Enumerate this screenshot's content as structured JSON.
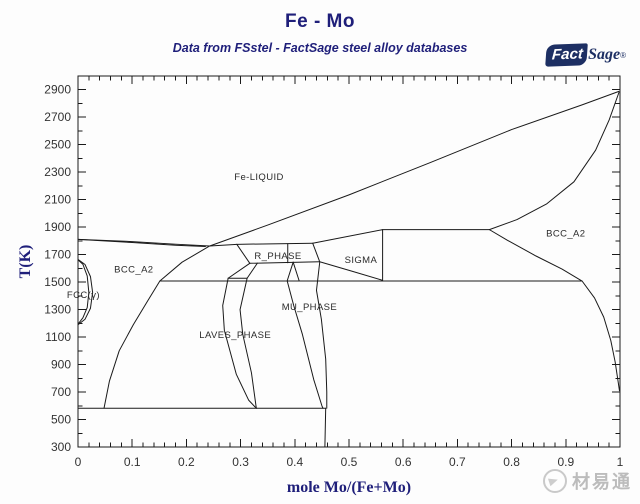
{
  "header": {
    "title": "Fe - Mo",
    "subtitle": "Data from FSstel - FactSage steel alloy databases"
  },
  "logo": {
    "fact": "Fact",
    "sage": "Sage",
    "mark": "®"
  },
  "watermark": {
    "text": "材易通"
  },
  "colors": {
    "accent_navy": "#1f1f7a",
    "logo_navy": "#1d2f63",
    "boundary_line": "#1a1a1a",
    "tick_text": "#333333",
    "phase_label_text": "#2a2a2a",
    "watermark_gray": "#bcbcbc"
  },
  "chart_data": {
    "type": "line",
    "title": "Fe - Mo",
    "subtitle": "Data from FSstel - FactSage steel alloy databases",
    "xlabel": "mole Mo/(Fe+Mo)",
    "ylabel": "T(K)",
    "xlim": [
      0,
      1
    ],
    "ylim": [
      300,
      3000
    ],
    "grid": false,
    "frame": true,
    "x_major_ticks": [
      0,
      0.1,
      0.2,
      0.3,
      0.4,
      0.5,
      0.6,
      0.7,
      0.8,
      0.9,
      1
    ],
    "x_tick_labels": [
      "0",
      "0.1",
      "0.2",
      "0.3",
      "0.4",
      "0.5",
      "0.6",
      "0.7",
      "0.8",
      "0.9",
      "1"
    ],
    "x_minor_step": 0.02,
    "y_major_ticks": [
      300,
      500,
      700,
      900,
      1100,
      1300,
      1500,
      1700,
      1900,
      2100,
      2300,
      2500,
      2700,
      2900
    ],
    "y_tick_labels": [
      "300",
      "500",
      "700",
      "900",
      "1100",
      "1300",
      "1500",
      "1700",
      "1900",
      "2100",
      "2300",
      "2500",
      "2700",
      "2900"
    ],
    "y_minor_step": 100,
    "phase_labels": [
      {
        "text": "Fe-LIQUID",
        "x": 0.334,
        "T": 2265
      },
      {
        "text": "BCC_A2",
        "x": 0.103,
        "T": 1590
      },
      {
        "text": "BCC_A2",
        "x": 0.9,
        "T": 1852
      },
      {
        "text": "FCC(γ)",
        "x": 0.01,
        "T": 1405
      },
      {
        "text": "R_PHASE",
        "x": 0.369,
        "T": 1690
      },
      {
        "text": "SIGMA",
        "x": 0.522,
        "T": 1662
      },
      {
        "text": "MU_PHASE",
        "x": 0.427,
        "T": 1320
      },
      {
        "text": "LAVES_PHASE",
        "x": 0.29,
        "T": 1115
      }
    ],
    "boundaries": [
      {
        "name": "fe-liquidus",
        "points": [
          [
            0,
            1811
          ],
          [
            0.1,
            1795
          ],
          [
            0.18,
            1776
          ],
          [
            0.243,
            1763
          ]
        ]
      },
      {
        "name": "fe-solidus",
        "points": [
          [
            0,
            1811
          ],
          [
            0.1,
            1788
          ],
          [
            0.18,
            1768
          ],
          [
            0.235,
            1759
          ]
        ]
      },
      {
        "name": "liquidus-main",
        "points": [
          [
            0.243,
            1763
          ],
          [
            0.35,
            1915
          ],
          [
            0.5,
            2135
          ],
          [
            0.65,
            2370
          ],
          [
            0.8,
            2610
          ],
          [
            0.93,
            2790
          ],
          [
            0.998,
            2888
          ]
        ]
      },
      {
        "name": "mo-solidus",
        "points": [
          [
            0.759,
            1882
          ],
          [
            0.81,
            1955
          ],
          [
            0.865,
            2070
          ],
          [
            0.915,
            2230
          ],
          [
            0.955,
            2460
          ],
          [
            0.98,
            2680
          ],
          [
            0.998,
            2880
          ]
        ]
      },
      {
        "name": "peritectic-1882K",
        "points": [
          [
            0.562,
            1882
          ],
          [
            0.759,
            1882
          ]
        ]
      },
      {
        "name": "sigma-outline",
        "points": [
          [
            0.433,
            1783
          ],
          [
            0.562,
            1882
          ],
          [
            0.562,
            1513
          ],
          [
            0.505,
            1580
          ],
          [
            0.446,
            1648
          ],
          [
            0.433,
            1783
          ]
        ]
      },
      {
        "name": "r-phase-top",
        "points": [
          [
            0.243,
            1763
          ],
          [
            0.293,
            1775
          ],
          [
            0.434,
            1783
          ]
        ]
      },
      {
        "name": "r-phase-left",
        "points": [
          [
            0.293,
            1775
          ],
          [
            0.317,
            1637
          ]
        ]
      },
      {
        "name": "r-phase-bottom",
        "points": [
          [
            0.317,
            1637
          ],
          [
            0.446,
            1648
          ]
        ]
      },
      {
        "name": "r-phase-tieline",
        "points": [
          [
            0.387,
            1779
          ],
          [
            0.387,
            1641
          ]
        ]
      },
      {
        "name": "r-laves-left",
        "points": [
          [
            0.317,
            1637
          ],
          [
            0.277,
            1528
          ]
        ]
      },
      {
        "name": "r-laves-right",
        "points": [
          [
            0.331,
            1638
          ],
          [
            0.312,
            1528
          ]
        ]
      },
      {
        "name": "laves-top-1528K",
        "points": [
          [
            0.277,
            1528
          ],
          [
            0.312,
            1528
          ]
        ]
      },
      {
        "name": "laves-left",
        "points": [
          [
            0.277,
            1528
          ],
          [
            0.267,
            1330
          ],
          [
            0.27,
            1150
          ],
          [
            0.292,
            830
          ],
          [
            0.315,
            640
          ],
          [
            0.329,
            582
          ]
        ]
      },
      {
        "name": "laves-right",
        "points": [
          [
            0.312,
            1528
          ],
          [
            0.299,
            1300
          ],
          [
            0.304,
            1120
          ],
          [
            0.32,
            840
          ],
          [
            0.329,
            582
          ]
        ]
      },
      {
        "name": "mu-peak-left",
        "points": [
          [
            0.397,
            1645
          ],
          [
            0.386,
            1510
          ]
        ]
      },
      {
        "name": "mu-peak-right",
        "points": [
          [
            0.397,
            1645
          ],
          [
            0.408,
            1510
          ]
        ]
      },
      {
        "name": "mu-left",
        "points": [
          [
            0.386,
            1508
          ],
          [
            0.398,
            1330
          ],
          [
            0.414,
            1120
          ],
          [
            0.435,
            790
          ],
          [
            0.45,
            600
          ],
          [
            0.452,
            582
          ]
        ]
      },
      {
        "name": "mu-right",
        "points": [
          [
            0.446,
            1645
          ],
          [
            0.44,
            1440
          ],
          [
            0.449,
            1230
          ],
          [
            0.457,
            940
          ],
          [
            0.459,
            700
          ],
          [
            0.459,
            582
          ]
        ]
      },
      {
        "name": "mu-low-boundary",
        "points": [
          [
            0.457,
            582
          ],
          [
            0.4555,
            300
          ]
        ]
      },
      {
        "name": "eutectoid-1508K",
        "points": [
          [
            0.151,
            1508
          ],
          [
            0.93,
            1508
          ]
        ]
      },
      {
        "name": "invariant-582K",
        "points": [
          [
            0,
            582
          ],
          [
            0.457,
            582
          ]
        ]
      },
      {
        "name": "bcc-alpha-solvus",
        "points": [
          [
            0.048,
            582
          ],
          [
            0.058,
            780
          ],
          [
            0.076,
            1000
          ],
          [
            0.102,
            1190
          ],
          [
            0.128,
            1360
          ],
          [
            0.151,
            1508
          ],
          [
            0.192,
            1645
          ],
          [
            0.243,
            1763
          ]
        ]
      },
      {
        "name": "bcc-mo-solvus",
        "points": [
          [
            0.759,
            1882
          ],
          [
            0.792,
            1805
          ],
          [
            0.845,
            1690
          ],
          [
            0.893,
            1595
          ],
          [
            0.93,
            1508
          ],
          [
            0.953,
            1385
          ],
          [
            0.97,
            1245
          ],
          [
            0.983,
            1075
          ],
          [
            0.991,
            920
          ],
          [
            0.996,
            790
          ],
          [
            0.999,
            710
          ]
        ]
      },
      {
        "name": "fcc-gamma-loop-outer",
        "points": [
          [
            0,
            1665
          ],
          [
            0.013,
            1628
          ],
          [
            0.023,
            1540
          ],
          [
            0.027,
            1425
          ],
          [
            0.023,
            1310
          ],
          [
            0.013,
            1230
          ],
          [
            0,
            1190
          ]
        ]
      },
      {
        "name": "fcc-gamma-loop-inner",
        "points": [
          [
            0,
            1662
          ],
          [
            0.009,
            1630
          ],
          [
            0.017,
            1545
          ],
          [
            0.02,
            1425
          ],
          [
            0.017,
            1315
          ],
          [
            0.009,
            1240
          ],
          [
            0,
            1194
          ]
        ]
      }
    ]
  }
}
